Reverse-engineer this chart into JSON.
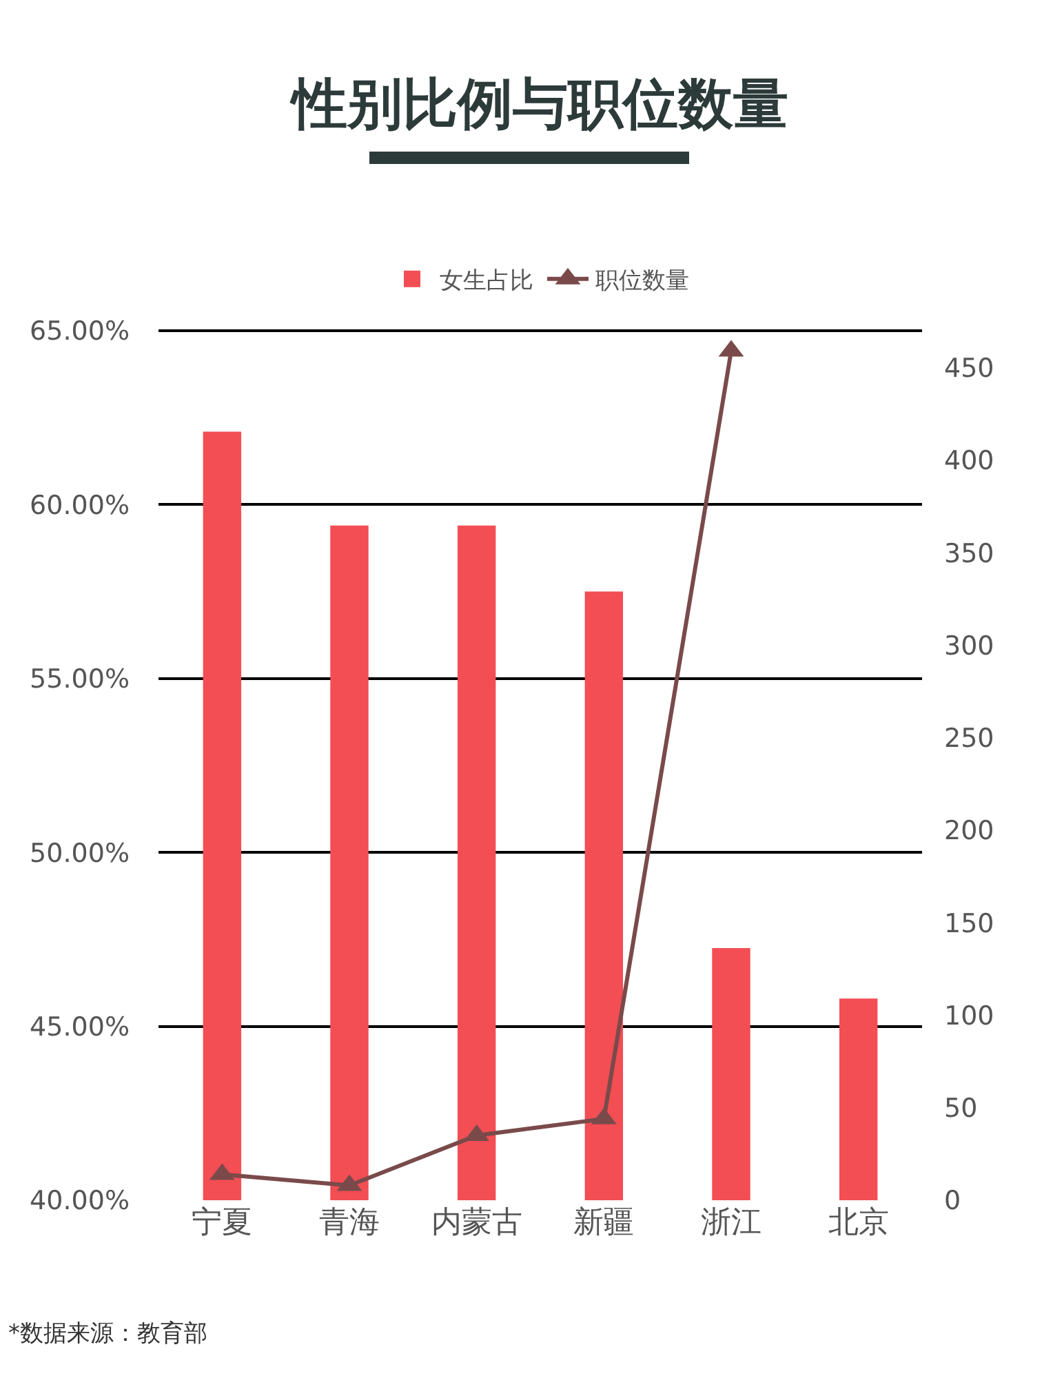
{
  "chart_data": {
    "type": "bar",
    "title": "性别比例与职位数量",
    "categories": [
      "宁夏",
      "青海",
      "内蒙古",
      "新疆",
      "浙江",
      "北京"
    ],
    "series": [
      {
        "name": "女生占比",
        "color": "#f24e54",
        "values": [
          62.1,
          59.4,
          59.4,
          57.5,
          47.25,
          45.8
        ]
      },
      {
        "name": "职位数量",
        "type": "line",
        "axis": "y2",
        "color": "#7a4a4a",
        "marker": "triangle",
        "line_style": "solid",
        "values": [
          14,
          8,
          35,
          44,
          459,
          null
        ]
      }
    ],
    "ylim": [
      40,
      65
    ],
    "yticks": [
      {
        "value": 40,
        "label": "40.00%"
      },
      {
        "value": 45,
        "label": "45.00%"
      },
      {
        "value": 50,
        "label": "50.00%"
      },
      {
        "value": 55,
        "label": "55.00%"
      },
      {
        "value": 60,
        "label": "60.00%"
      },
      {
        "value": 65,
        "label": "65.00%"
      }
    ],
    "y2lim": [
      0,
      470
    ],
    "y2ticks": [
      0,
      50,
      100,
      150,
      200,
      250,
      300,
      350,
      400,
      450
    ],
    "grid": "y",
    "legend": "top",
    "annotations": [
      "*数据来源：教育部"
    ]
  }
}
